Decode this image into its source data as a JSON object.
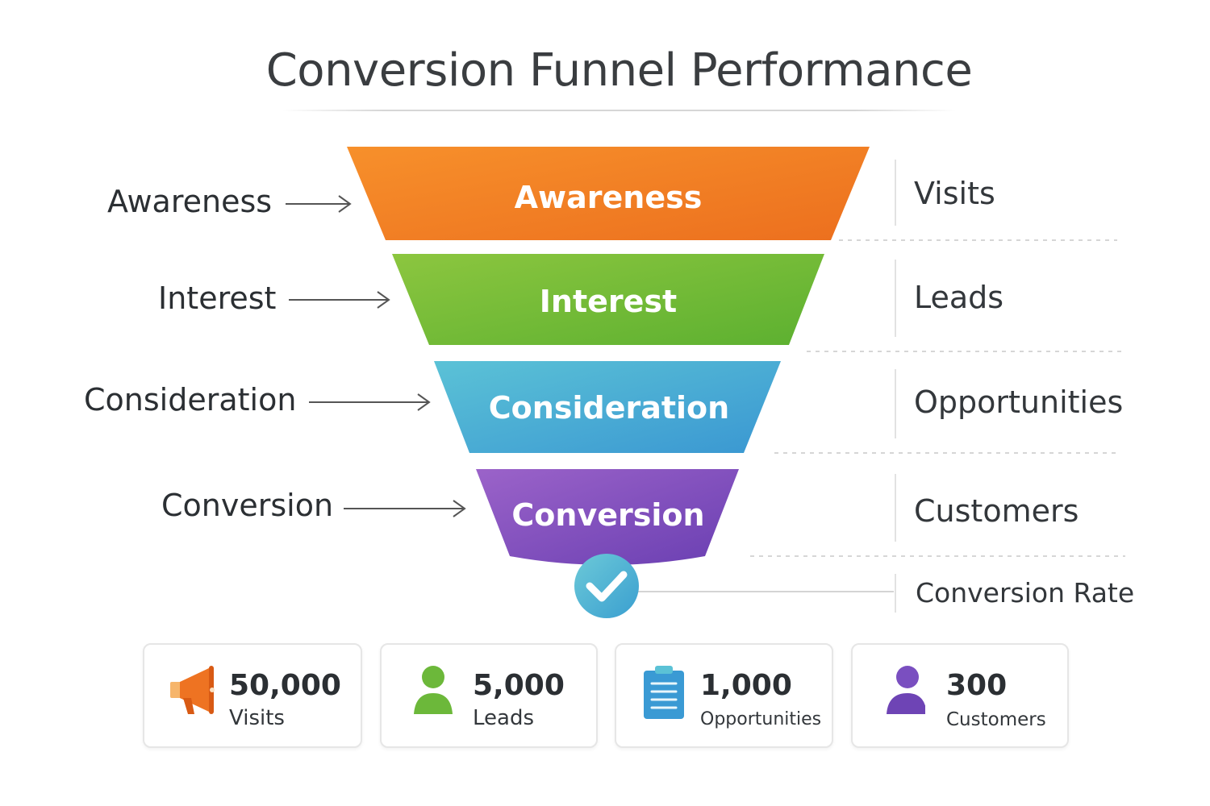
{
  "title": "Conversion Funnel Performance",
  "funnel": {
    "stages": [
      {
        "label": "Awareness",
        "side_label": "Awareness",
        "metric_label": "Visits",
        "color_top": "#f7902b",
        "color_bottom": "#ec6f1e"
      },
      {
        "label": "Interest",
        "side_label": "Interest",
        "metric_label": "Leads",
        "color_top": "#8cc63f",
        "color_bottom": "#5cb030"
      },
      {
        "label": "Consideration",
        "side_label": "Consideration",
        "metric_label": "Opportunities",
        "color_top": "#5bc2d6",
        "color_bottom": "#3a97d2"
      },
      {
        "label": "Conversion",
        "side_label": "Conversion",
        "metric_label": "Customers",
        "color_top": "#9b63c9",
        "color_bottom": "#6a3fb2"
      }
    ],
    "result_label": "Conversion Rate",
    "result_icon": "checkmark-circle-icon",
    "result_color": "#4fb3cf"
  },
  "cards": [
    {
      "value": "50,000",
      "label": "Visits",
      "icon": "megaphone-icon",
      "color": "#ee7322"
    },
    {
      "value": "5,000",
      "label": "Leads",
      "icon": "person-icon",
      "color": "#6cb83a"
    },
    {
      "value": "1,000",
      "label": "Opportunities",
      "icon": "clipboard-icon",
      "color": "#3a9ad4"
    },
    {
      "value": "300",
      "label": "Customers",
      "icon": "person-icon",
      "color": "#6e44b5"
    }
  ]
}
